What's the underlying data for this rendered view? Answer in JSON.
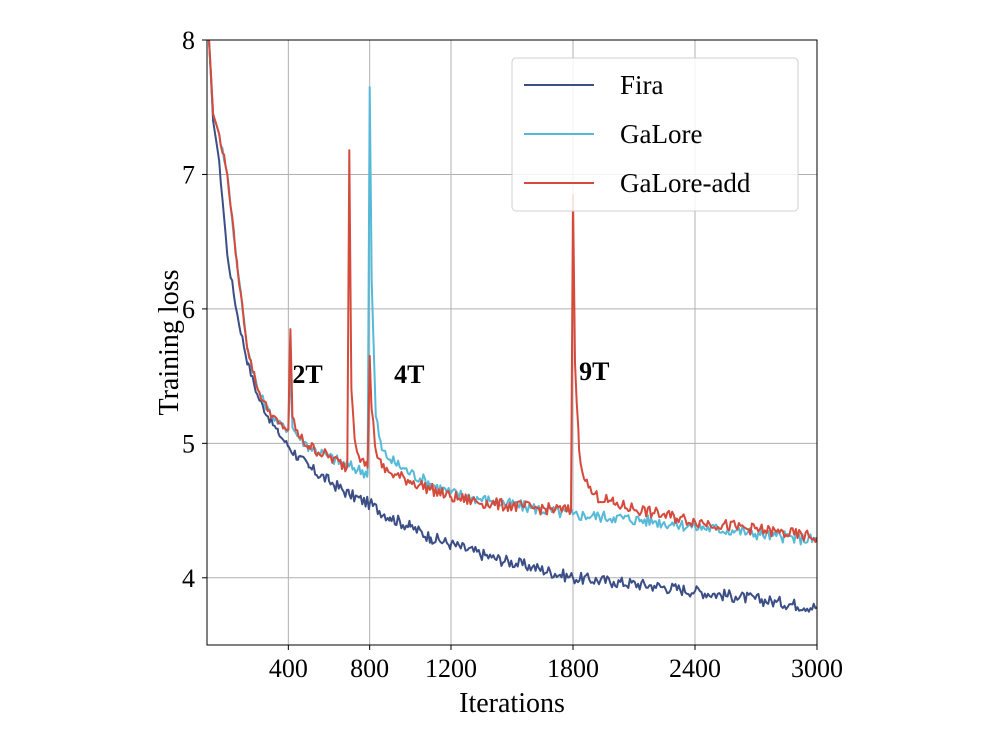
{
  "chart_data": {
    "type": "line",
    "title": "",
    "xlabel": "Iterations",
    "ylabel": "Training loss",
    "xlim": [
      0,
      3000
    ],
    "ylim": [
      3.5,
      8
    ],
    "xticks": [
      400,
      800,
      1200,
      1800,
      2400,
      3000
    ],
    "xtick_labels": [
      "400",
      "800",
      "1200",
      "1800",
      "2400",
      "3000"
    ],
    "yticks": [
      4,
      5,
      6,
      7,
      8
    ],
    "ytick_labels": [
      "4",
      "5",
      "6",
      "7",
      "8"
    ],
    "grid": true,
    "legend_position": "top-right",
    "series": [
      {
        "name": "Fira",
        "color": "#3b4f86",
        "x": [
          10,
          30,
          60,
          100,
          150,
          200,
          250,
          300,
          350,
          400,
          450,
          500,
          600,
          700,
          800,
          900,
          1000,
          1100,
          1200,
          1400,
          1600,
          1800,
          2000,
          2200,
          2400,
          2600,
          2800,
          3000
        ],
        "y": [
          8.0,
          7.4,
          7.1,
          6.4,
          5.95,
          5.6,
          5.35,
          5.2,
          5.08,
          4.98,
          4.9,
          4.82,
          4.72,
          4.62,
          4.55,
          4.45,
          4.38,
          4.3,
          4.25,
          4.15,
          4.08,
          4.0,
          3.97,
          3.94,
          3.9,
          3.86,
          3.82,
          3.78
        ]
      },
      {
        "name": "GaLore",
        "color": "#56b9d8",
        "x": [
          10,
          30,
          60,
          100,
          150,
          200,
          250,
          300,
          350,
          400,
          410,
          420,
          450,
          500,
          600,
          700,
          790,
          800,
          810,
          830,
          860,
          900,
          1000,
          1100,
          1200,
          1400,
          1600,
          1800,
          2000,
          2200,
          2400,
          2600,
          2800,
          3000
        ],
        "y": [
          8.0,
          7.45,
          7.3,
          7.0,
          6.3,
          5.7,
          5.4,
          5.25,
          5.15,
          5.1,
          5.6,
          5.12,
          5.05,
          4.98,
          4.9,
          4.83,
          4.78,
          7.65,
          6.2,
          5.2,
          4.95,
          4.88,
          4.78,
          4.7,
          4.63,
          4.57,
          4.52,
          4.47,
          4.45,
          4.42,
          4.38,
          4.35,
          4.31,
          4.28
        ]
      },
      {
        "name": "GaLore-add",
        "color": "#d64a3b",
        "x": [
          10,
          30,
          60,
          100,
          150,
          200,
          250,
          300,
          350,
          400,
          410,
          420,
          450,
          500,
          600,
          690,
          700,
          710,
          730,
          760,
          790,
          800,
          810,
          830,
          860,
          900,
          1000,
          1100,
          1200,
          1400,
          1600,
          1790,
          1800,
          1810,
          1830,
          1860,
          1900,
          2000,
          2200,
          2400,
          2600,
          2800,
          3000
        ],
        "y": [
          8.0,
          7.45,
          7.3,
          7.0,
          6.3,
          5.7,
          5.4,
          5.25,
          5.15,
          5.1,
          5.85,
          5.2,
          5.05,
          4.98,
          4.9,
          4.82,
          7.18,
          5.4,
          5.0,
          4.88,
          4.82,
          5.65,
          5.25,
          4.95,
          4.82,
          4.78,
          4.72,
          4.66,
          4.6,
          4.55,
          4.52,
          4.5,
          6.85,
          5.6,
          4.95,
          4.72,
          4.62,
          4.55,
          4.48,
          4.42,
          4.38,
          4.34,
          4.3
        ]
      }
    ],
    "annotations": [
      {
        "text": "2T",
        "x": 420,
        "y": 5.45
      },
      {
        "text": "4T",
        "x": 920,
        "y": 5.45
      },
      {
        "text": "9T",
        "x": 1830,
        "y": 5.47
      }
    ]
  }
}
